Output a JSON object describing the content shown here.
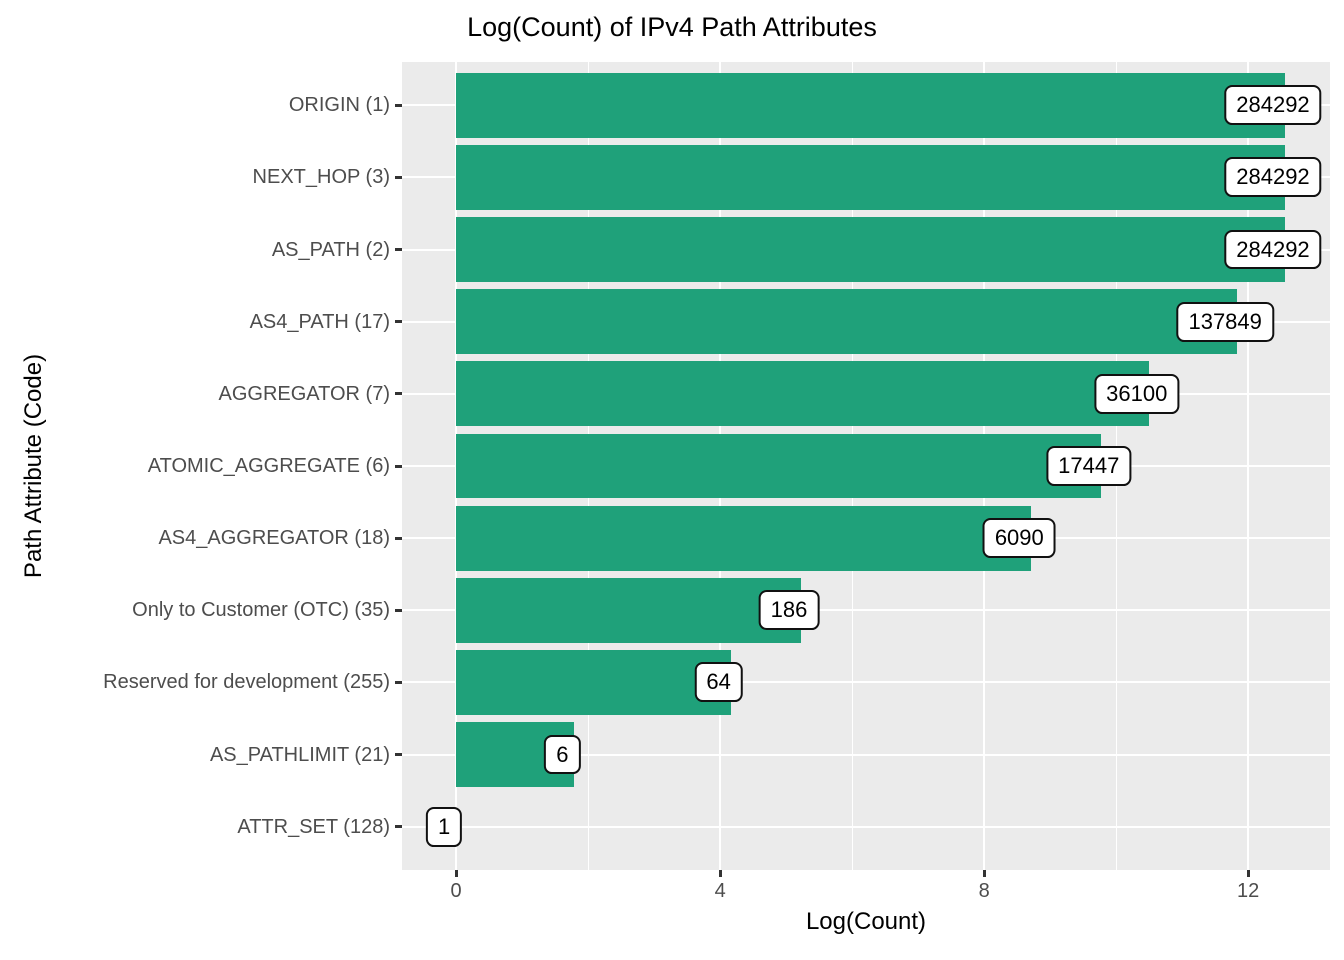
{
  "title": "Log(Count) of IPv4 Path Attributes",
  "x_axis": {
    "label": "Log(Count)",
    "tick_labels": [
      "0",
      "4",
      "8",
      "12"
    ]
  },
  "y_axis": {
    "label": "Path Attribute (Code)"
  },
  "colors": {
    "bar": "#1fa17a",
    "panel_bg": "#EBEBEB",
    "gridline": "#FFFFFF",
    "tick_label": "#4D4D4D",
    "axis_title": "#000000",
    "value_label_bg": "#FFFFFF",
    "value_label_border": "#111111"
  },
  "chart_data": {
    "type": "bar",
    "orientation": "horizontal",
    "title": "Log(Count) of IPv4 Path Attributes",
    "xlabel": "Log(Count)",
    "ylabel": "Path Attribute (Code)",
    "x_scale": "natural log of count",
    "xlim": [
      -0.82,
      13.24
    ],
    "x_major_ticks": [
      0,
      4,
      8,
      12
    ],
    "x_minor_ticks": [
      2,
      6,
      10
    ],
    "grid": true,
    "legend": false,
    "categories": [
      "ORIGIN (1)",
      "NEXT_HOP (3)",
      "AS_PATH (2)",
      "AS4_PATH (17)",
      "AGGREGATOR (7)",
      "ATOMIC_AGGREGATE (6)",
      "AS4_AGGREGATOR (18)",
      "Only to Customer (OTC) (35)",
      "Reserved for development (255)",
      "AS_PATHLIMIT (21)",
      "ATTR_SET (128)"
    ],
    "values": [
      284292,
      284292,
      284292,
      137849,
      36100,
      17447,
      6090,
      186,
      64,
      6,
      1
    ],
    "log_values": [
      12.56,
      12.56,
      12.56,
      11.83,
      10.49,
      9.77,
      8.71,
      5.23,
      4.16,
      1.79,
      0
    ],
    "value_labels": [
      "284292",
      "284292",
      "284292",
      "137849",
      "36100",
      "17447",
      "6090",
      "186",
      "64",
      "6",
      "1"
    ]
  }
}
